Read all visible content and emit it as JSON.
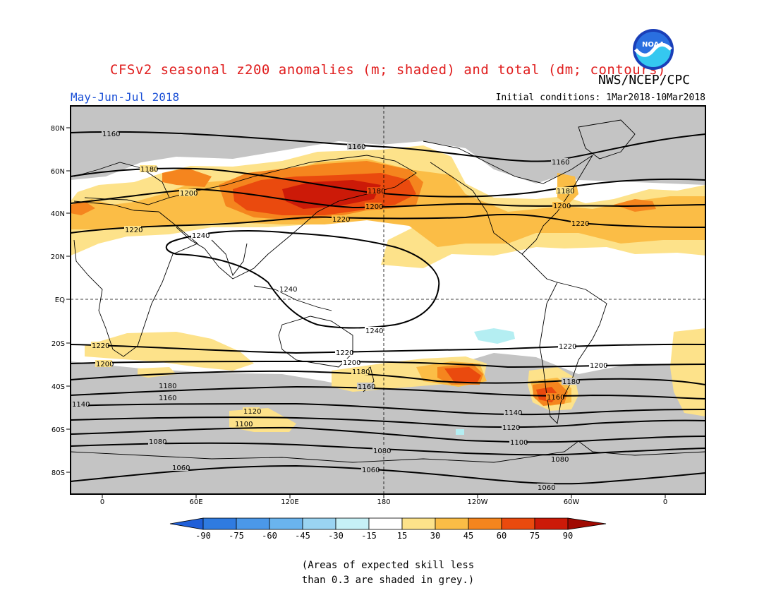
{
  "header": {
    "title": "CFSv2 seasonal z200 anomalies (m; shaded) and total (dm; contours)",
    "agency": "NWS/NCEP/CPC",
    "season": "May-Jun-Jul 2018",
    "initial_conditions": "Initial conditions: 1Mar2018-10Mar2018",
    "logo_text": "NOAA"
  },
  "map": {
    "lat_labels": [
      "80N",
      "60N",
      "40N",
      "20N",
      "EQ",
      "20S",
      "40S",
      "60S",
      "80S"
    ],
    "lon_labels": [
      "0",
      "60E",
      "120E",
      "180",
      "120W",
      "60W",
      "0"
    ],
    "contour_labels": {
      "c1060": "1060",
      "c1080": "1080",
      "c1100": "1100",
      "c1120": "1120",
      "c1140": "1140",
      "c1160": "1160",
      "c1180": "1180",
      "c1200": "1200",
      "c1220": "1220",
      "c1240": "1240"
    },
    "colors": {
      "grey": "#c4c4c4",
      "y15": "#fde28a",
      "y30": "#fbbd46",
      "o45": "#f5851e",
      "r60": "#ea4a0e",
      "r75": "#cc1a08",
      "b15": "#b4eef2"
    }
  },
  "colorbar": {
    "labels": [
      "-90",
      "-75",
      "-60",
      "-45",
      "-30",
      "-15",
      "15",
      "30",
      "45",
      "60",
      "75",
      "90"
    ],
    "colors": [
      "#1f5fd8",
      "#2f7be0",
      "#4b98e8",
      "#6ab4ee",
      "#9ad4f2",
      "#c6f0f6",
      "#ffffff",
      "#fde28a",
      "#fbbd46",
      "#f5851e",
      "#ea4a0e",
      "#cc1a08",
      "#a00a02"
    ]
  },
  "note": {
    "line1": "(Areas of expected skill less",
    "line2": "than 0.3 are shaded in grey.)"
  }
}
